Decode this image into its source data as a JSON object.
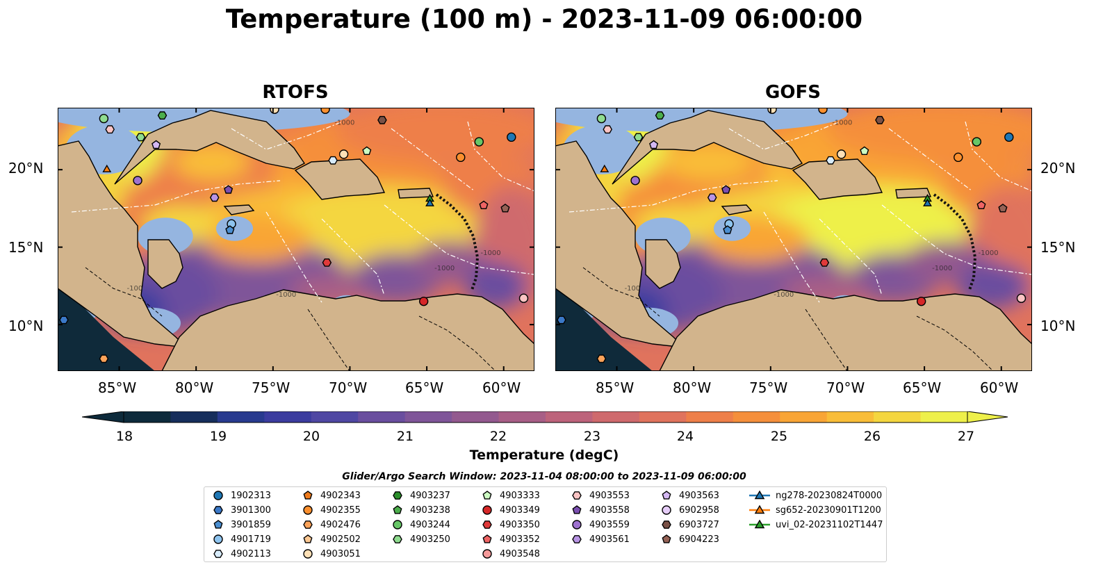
{
  "title": "Temperature (100 m) - 2023-11-09 06:00:00",
  "panels": [
    {
      "title": "RTOFS",
      "contour_labels": [
        "-100",
        "-1000",
        "-1000",
        "-1000",
        "-1000"
      ]
    },
    {
      "title": "GOFS",
      "contour_labels": [
        "-100",
        "-1000",
        "-1000",
        "-1000",
        "-1000"
      ]
    }
  ],
  "map_extent": {
    "lon": [
      -89,
      -58
    ],
    "lat": [
      7,
      24
    ]
  },
  "lon_ticks": [
    "85°W",
    "80°W",
    "75°W",
    "70°W",
    "65°W",
    "60°W"
  ],
  "lat_ticks": [
    "20°N",
    "15°N",
    "10°N"
  ],
  "colorbar": {
    "label": "Temperature (degC)",
    "ticks": [
      "18",
      "19",
      "20",
      "21",
      "22",
      "23",
      "24",
      "25",
      "26",
      "27"
    ],
    "range": [
      18,
      27
    ],
    "extend": "both",
    "colors": [
      "#0d2a3b",
      "#162e5c",
      "#283a8f",
      "#3b3c9f",
      "#4f47a3",
      "#6a4e9f",
      "#7f5599",
      "#93598f",
      "#a85e86",
      "#bd637b",
      "#cf6a6d",
      "#e0735d",
      "#ee7f49",
      "#f58f3b",
      "#f9a535",
      "#f9bd38",
      "#f4d63f",
      "#eef04a"
    ]
  },
  "colors": {
    "land": "#d2b48c",
    "shallow": "#95b5e0",
    "hot": "#f0ff50",
    "deep": "#0f2a3a"
  },
  "legend": {
    "title": "Glider/Argo Search Window: 2023-11-04 08:00:00 to 2023-11-09 06:00:00",
    "items": [
      {
        "label": "1902313",
        "marker": "circle",
        "color": "#1f77b4"
      },
      {
        "label": "3901300",
        "marker": "hexagon",
        "color": "#3b79c8"
      },
      {
        "label": "3901859",
        "marker": "pentagon",
        "color": "#4b8fd1"
      },
      {
        "label": "4901719",
        "marker": "circle",
        "color": "#8ec4ef"
      },
      {
        "label": "4902113",
        "marker": "hexagon",
        "color": "#d8ecfb"
      },
      {
        "label": "4902343",
        "marker": "pentagon",
        "color": "#ef7b1c"
      },
      {
        "label": "4902355",
        "marker": "circle",
        "color": "#fb8f2e"
      },
      {
        "label": "4902476",
        "marker": "hexagon",
        "color": "#fba35a"
      },
      {
        "label": "4902502",
        "marker": "pentagon",
        "color": "#fcc893"
      },
      {
        "label": "4903051",
        "marker": "circle",
        "color": "#fee0b6"
      },
      {
        "label": "4903237",
        "marker": "hexagon",
        "color": "#2b8f2b"
      },
      {
        "label": "4903238",
        "marker": "pentagon",
        "color": "#4cae4c"
      },
      {
        "label": "4903244",
        "marker": "circle",
        "color": "#67c667"
      },
      {
        "label": "4903250",
        "marker": "hexagon",
        "color": "#8fdc8f"
      },
      {
        "label": "4903333",
        "marker": "pentagon",
        "color": "#ccfbc2"
      },
      {
        "label": "4903349",
        "marker": "circle",
        "color": "#d62728"
      },
      {
        "label": "4903350",
        "marker": "hexagon",
        "color": "#e03a3a"
      },
      {
        "label": "4903352",
        "marker": "pentagon",
        "color": "#ee6464"
      },
      {
        "label": "4903548",
        "marker": "circle",
        "color": "#f59a9a"
      },
      {
        "label": "4903553",
        "marker": "hexagon",
        "color": "#fbc4c4"
      },
      {
        "label": "4903558",
        "marker": "pentagon",
        "color": "#7b4fb0"
      },
      {
        "label": "4903559",
        "marker": "circle",
        "color": "#9e72cf"
      },
      {
        "label": "4903561",
        "marker": "hexagon",
        "color": "#b894e4"
      },
      {
        "label": "4903563",
        "marker": "pentagon",
        "color": "#d4b8f3"
      },
      {
        "label": "6902958",
        "marker": "circle",
        "color": "#e6cdf9"
      },
      {
        "label": "6903727",
        "marker": "hexagon",
        "color": "#7a5146"
      },
      {
        "label": "6904223",
        "marker": "pentagon",
        "color": "#956256"
      },
      {
        "label": "ng278-20230824T0000",
        "marker": "triangle-line",
        "color": "#1f77b4"
      },
      {
        "label": "sg652-20230901T1200",
        "marker": "triangle-line",
        "color": "#ff7f0e"
      },
      {
        "label": "uvi_02-20231102T1447",
        "marker": "triangle-line",
        "color": "#2ca02c"
      }
    ]
  },
  "observations": [
    {
      "lon": -86.0,
      "lat": 23.3,
      "marker": "circle",
      "color": "#8fdc8f"
    },
    {
      "lon": -82.2,
      "lat": 23.5,
      "marker": "hexagon",
      "color": "#4cae4c"
    },
    {
      "lon": -85.6,
      "lat": 22.6,
      "marker": "hexagon",
      "color": "#fbc4c4"
    },
    {
      "lon": -82.6,
      "lat": 21.6,
      "marker": "pentagon",
      "color": "#d4b8f3"
    },
    {
      "lon": -83.6,
      "lat": 22.1,
      "marker": "hexagon",
      "color": "#8fdc8f"
    },
    {
      "lon": -85.8,
      "lat": 20.0,
      "marker": "triangle",
      "color": "#ff7f0e"
    },
    {
      "lon": -83.8,
      "lat": 19.3,
      "marker": "circle",
      "color": "#9e72cf"
    },
    {
      "lon": -78.8,
      "lat": 18.2,
      "marker": "hexagon",
      "color": "#b894e4"
    },
    {
      "lon": -77.9,
      "lat": 18.7,
      "marker": "pentagon",
      "color": "#7b4fb0"
    },
    {
      "lon": -77.7,
      "lat": 16.5,
      "marker": "circle",
      "color": "#8ec4ef"
    },
    {
      "lon": -77.8,
      "lat": 16.1,
      "marker": "pentagon",
      "color": "#4b8fd1"
    },
    {
      "lon": -70.4,
      "lat": 21.0,
      "marker": "circle",
      "color": "#fee0b6"
    },
    {
      "lon": -71.1,
      "lat": 20.6,
      "marker": "hexagon",
      "color": "#d8ecfb"
    },
    {
      "lon": -68.9,
      "lat": 21.2,
      "marker": "pentagon",
      "color": "#ccfbc2"
    },
    {
      "lon": -67.9,
      "lat": 23.2,
      "marker": "hexagon",
      "color": "#7a5146"
    },
    {
      "lon": -62.8,
      "lat": 20.8,
      "marker": "circle",
      "color": "#fb8f2e"
    },
    {
      "lon": -61.6,
      "lat": 21.8,
      "marker": "circle",
      "color": "#67c667"
    },
    {
      "lon": -59.5,
      "lat": 22.1,
      "marker": "circle",
      "color": "#1f77b4"
    },
    {
      "lon": -64.8,
      "lat": 18.1,
      "marker": "triangle",
      "color": "#2ca02c"
    },
    {
      "lon": -64.8,
      "lat": 17.8,
      "marker": "triangle",
      "color": "#1f77b4"
    },
    {
      "lon": -61.3,
      "lat": 17.7,
      "marker": "pentagon",
      "color": "#ee6464"
    },
    {
      "lon": -59.9,
      "lat": 17.5,
      "marker": "pentagon",
      "color": "#956256"
    },
    {
      "lon": -71.5,
      "lat": 14.0,
      "marker": "hexagon",
      "color": "#e03a3a"
    },
    {
      "lon": -65.2,
      "lat": 11.5,
      "marker": "circle",
      "color": "#d62728"
    },
    {
      "lon": -58.7,
      "lat": 11.7,
      "marker": "circle",
      "color": "#fbc4c4"
    },
    {
      "lon": -88.6,
      "lat": 10.3,
      "marker": "hexagon",
      "color": "#3b79c8"
    },
    {
      "lon": -86.0,
      "lat": 7.8,
      "marker": "hexagon",
      "color": "#fba35a"
    },
    {
      "lon": -71.6,
      "lat": 23.9,
      "marker": "circle",
      "color": "#fb8f2e"
    },
    {
      "lon": -74.9,
      "lat": 23.9,
      "marker": "circle",
      "color": "#fee0b6"
    }
  ]
}
